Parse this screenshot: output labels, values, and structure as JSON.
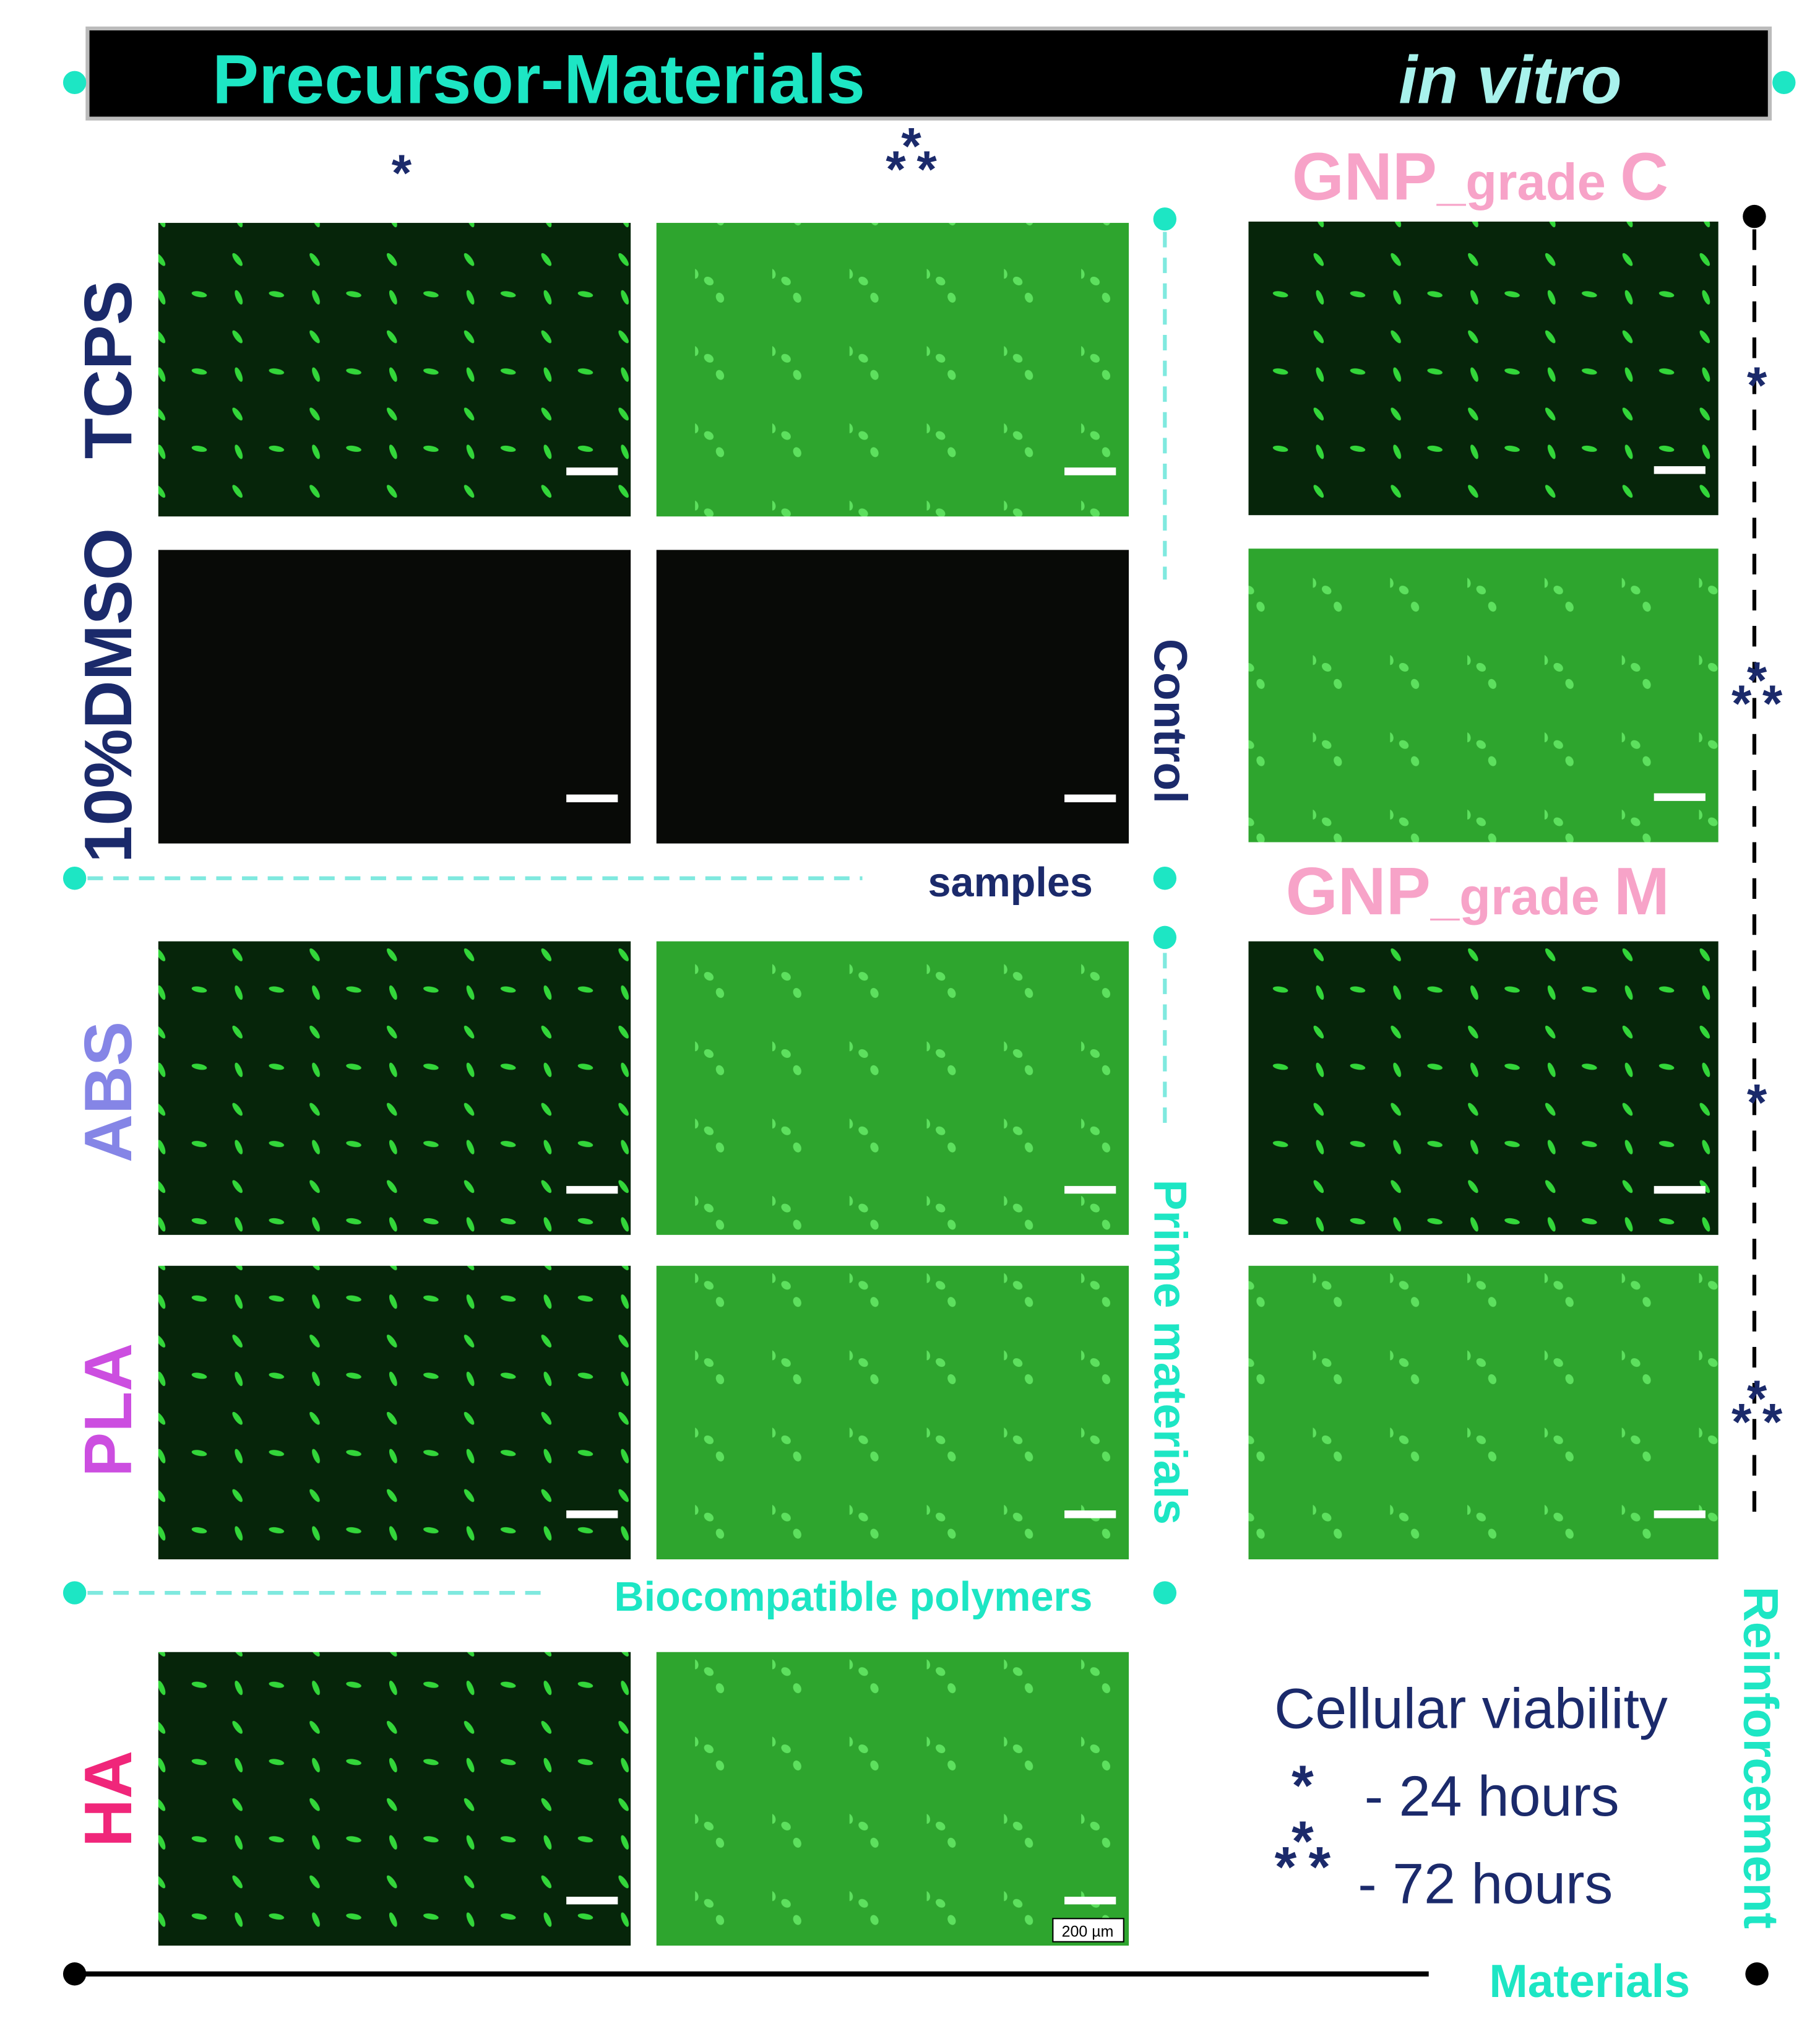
{
  "header": {
    "title": "Precursor-Materials",
    "subtitle": "in vitro"
  },
  "column_markers": [
    "*",
    "***"
  ],
  "row_labels": [
    {
      "text": "TCPS",
      "color": "#1b2a6b"
    },
    {
      "text": "10%DMSO",
      "color": "#1b2a6b"
    },
    {
      "text": "ABS",
      "color": "#8585e6"
    },
    {
      "text": "PLA",
      "color": "#cc4ee0"
    },
    {
      "text": "HA",
      "color": "#f0267a"
    }
  ],
  "groups": {
    "control": "Control",
    "control_samples": "samples",
    "prime": "Prime materials",
    "biocompatible": "Biocompatible polymers",
    "reinforcement": "Reinforcement",
    "reinforcement_materials": "Materials"
  },
  "gnp_labels": [
    "GNP_grade C",
    "GNP_grade M"
  ],
  "right_markers": [
    "*",
    "***",
    "*",
    "***"
  ],
  "legend": {
    "title": "Cellular viability",
    "items": [
      {
        "symbol": "*",
        "text": "- 24 hours"
      },
      {
        "symbol": "***",
        "text": "- 72 hours"
      }
    ]
  },
  "scale_bar": "200 µm"
}
